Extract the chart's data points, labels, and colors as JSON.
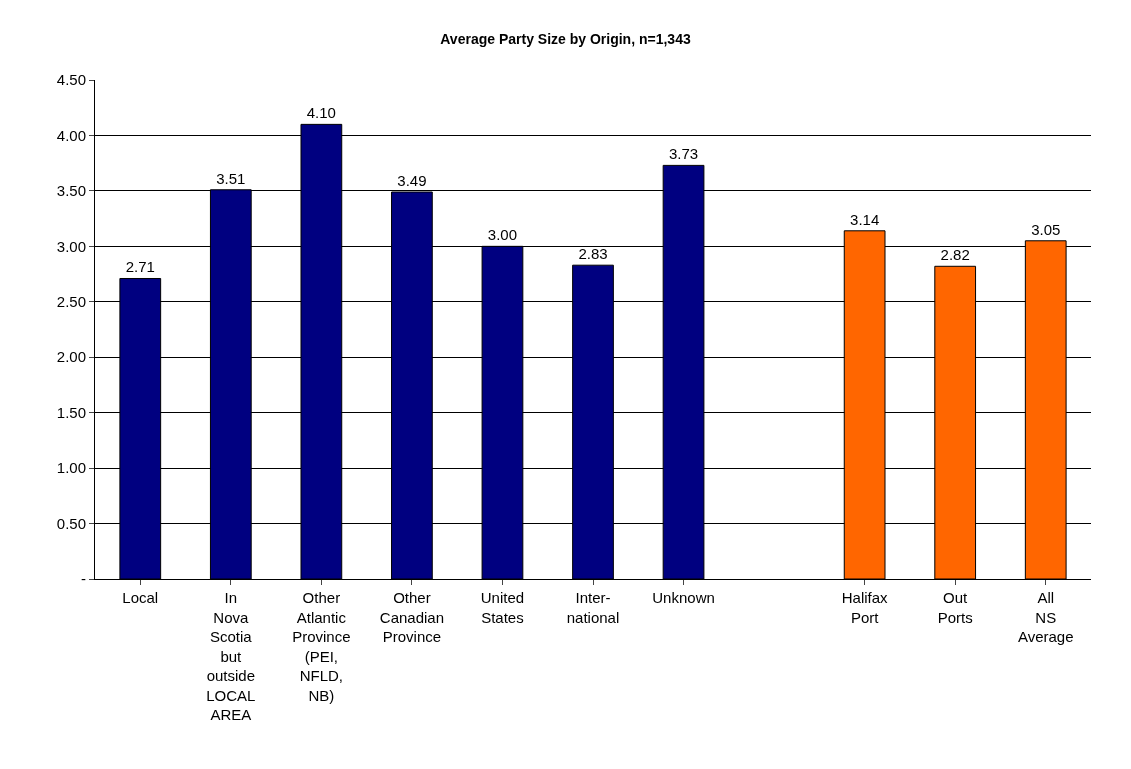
{
  "chart_data": {
    "type": "bar",
    "title": "Average Party Size by Origin, n=1,343",
    "categories": [
      "Local",
      "In Nova Scotia but outside LOCAL AREA",
      "Other Atlantic Province (PEI, NFLD, NB)",
      "Other Canadian Province",
      "United States",
      "Inter- national",
      "Unknown",
      null,
      "Halifax Port",
      "Out Ports",
      "All NS Average"
    ],
    "values": [
      2.71,
      3.51,
      4.1,
      3.49,
      3.0,
      2.83,
      3.73,
      null,
      3.14,
      2.82,
      3.05
    ],
    "value_labels": [
      "2.71",
      "3.51",
      "4.10",
      "3.49",
      "3.00",
      "2.83",
      "3.73",
      null,
      "3.14",
      "2.82",
      "3.05"
    ],
    "colors": [
      "#000080",
      "#000080",
      "#000080",
      "#000080",
      "#000080",
      "#000080",
      "#000080",
      null,
      "#ff6600",
      "#ff6600",
      "#ff6600"
    ],
    "ylim": [
      0,
      4.5
    ],
    "yticks": [
      {
        "value": 0,
        "label": "-"
      },
      {
        "value": 0.5,
        "label": "0.50"
      },
      {
        "value": 1,
        "label": "1.00"
      },
      {
        "value": 1.5,
        "label": "1.50"
      },
      {
        "value": 2,
        "label": "2.00"
      },
      {
        "value": 2.5,
        "label": "2.50"
      },
      {
        "value": 3,
        "label": "3.00"
      },
      {
        "value": 3.5,
        "label": "3.50"
      },
      {
        "value": 4,
        "label": "4.00"
      },
      {
        "value": 4.5,
        "label": "4.50"
      }
    ],
    "grid": "y",
    "legend": false
  }
}
